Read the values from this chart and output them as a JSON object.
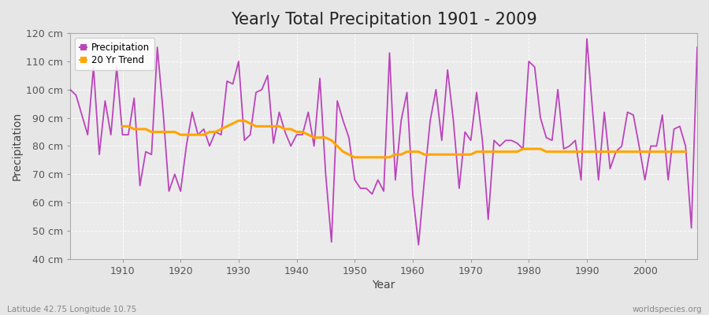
{
  "title": "Yearly Total Precipitation 1901 - 2009",
  "xlabel": "Year",
  "ylabel": "Precipitation",
  "subtitle_left": "Latitude 42.75 Longitude 10.75",
  "subtitle_right": "worldspecies.org",
  "years": [
    1901,
    1902,
    1903,
    1904,
    1905,
    1906,
    1907,
    1908,
    1909,
    1910,
    1911,
    1912,
    1913,
    1914,
    1915,
    1916,
    1917,
    1918,
    1919,
    1920,
    1921,
    1922,
    1923,
    1924,
    1925,
    1926,
    1927,
    1928,
    1929,
    1930,
    1931,
    1932,
    1933,
    1934,
    1935,
    1936,
    1937,
    1938,
    1939,
    1940,
    1941,
    1942,
    1943,
    1944,
    1945,
    1946,
    1947,
    1948,
    1949,
    1950,
    1951,
    1952,
    1953,
    1954,
    1955,
    1956,
    1957,
    1958,
    1959,
    1960,
    1961,
    1962,
    1963,
    1964,
    1965,
    1966,
    1967,
    1968,
    1969,
    1970,
    1971,
    1972,
    1973,
    1974,
    1975,
    1976,
    1977,
    1978,
    1979,
    1980,
    1981,
    1982,
    1983,
    1984,
    1985,
    1986,
    1987,
    1988,
    1989,
    1990,
    1991,
    1992,
    1993,
    1994,
    1995,
    1996,
    1997,
    1998,
    1999,
    2000,
    2001,
    2002,
    2003,
    2004,
    2005,
    2006,
    2007,
    2008,
    2009
  ],
  "precip": [
    100,
    98,
    91,
    84,
    108,
    77,
    96,
    84,
    108,
    84,
    84,
    97,
    66,
    78,
    77,
    115,
    92,
    64,
    70,
    64,
    80,
    92,
    84,
    86,
    80,
    85,
    84,
    103,
    102,
    110,
    82,
    84,
    99,
    100,
    105,
    81,
    92,
    85,
    80,
    84,
    84,
    92,
    80,
    104,
    70,
    46,
    96,
    89,
    83,
    68,
    65,
    65,
    63,
    68,
    64,
    113,
    68,
    89,
    99,
    63,
    45,
    68,
    89,
    100,
    82,
    107,
    89,
    65,
    85,
    82,
    99,
    82,
    54,
    82,
    80,
    82,
    82,
    81,
    79,
    110,
    108,
    90,
    83,
    82,
    100,
    79,
    80,
    82,
    68,
    118,
    92,
    68,
    92,
    72,
    78,
    80,
    92,
    91,
    80,
    68,
    80,
    80,
    91,
    68,
    86,
    87,
    80,
    51,
    115
  ],
  "trend": [
    null,
    null,
    null,
    null,
    null,
    null,
    null,
    null,
    null,
    87,
    87,
    86,
    86,
    86,
    85,
    85,
    85,
    85,
    85,
    84,
    84,
    84,
    84,
    84,
    85,
    85,
    86,
    87,
    88,
    89,
    89,
    88,
    87,
    87,
    87,
    87,
    87,
    86,
    86,
    85,
    85,
    84,
    83,
    83,
    83,
    82,
    80,
    78,
    77,
    76,
    76,
    76,
    76,
    76,
    76,
    76,
    77,
    77,
    78,
    78,
    78,
    77,
    77,
    77,
    77,
    77,
    77,
    77,
    77,
    77,
    78,
    78,
    78,
    78,
    78,
    78,
    78,
    78,
    79,
    79,
    79,
    79,
    78,
    78,
    78,
    78,
    78,
    78,
    78,
    78,
    78,
    78,
    78,
    78,
    78,
    78,
    78,
    78,
    78,
    78,
    78,
    78,
    78,
    78,
    78,
    78,
    78,
    null,
    null
  ],
  "precip_color": "#BB44BB",
  "trend_color": "#FFA500",
  "bg_color": "#E6E6E6",
  "plot_bg_color": "#EBEBEB",
  "grid_color": "#FFFFFF",
  "ylim": [
    40,
    120
  ],
  "yticks": [
    40,
    50,
    60,
    70,
    80,
    90,
    100,
    110,
    120
  ],
  "ytick_labels": [
    "40 cm",
    "50 cm",
    "60 cm",
    "70 cm",
    "80 cm",
    "90 cm",
    "100 cm",
    "110 cm",
    "120 cm"
  ],
  "xticks": [
    1910,
    1920,
    1930,
    1940,
    1950,
    1960,
    1970,
    1980,
    1990,
    2000
  ],
  "title_fontsize": 15,
  "label_fontsize": 10,
  "tick_fontsize": 9
}
